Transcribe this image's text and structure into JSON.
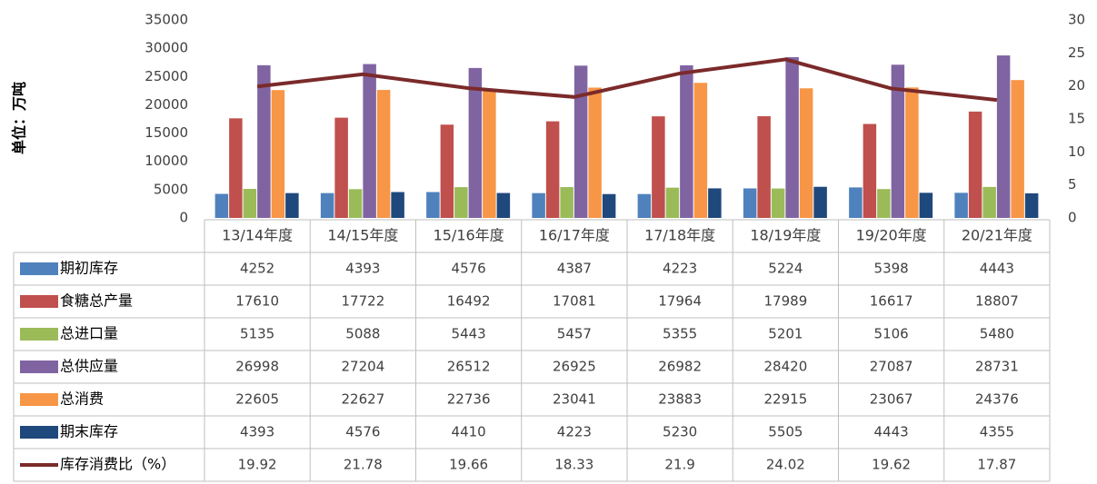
{
  "chart_data": {
    "type": "bar",
    "y_label": "单位：万吨",
    "categories": [
      "13/14年度",
      "14/15年度",
      "15/16年度",
      "16/17年度",
      "17/18年度",
      "18/19年度",
      "19/20年度",
      "20/21年度"
    ],
    "series": [
      {
        "name": "期初库存",
        "color": "#4f81bd",
        "values": [
          4252,
          4393,
          4576,
          4387,
          4223,
          5224,
          5398,
          4443
        ]
      },
      {
        "name": "食糖总产量",
        "color": "#c0504d",
        "values": [
          17610,
          17722,
          16492,
          17081,
          17964,
          17989,
          16617,
          18807
        ]
      },
      {
        "name": "总进口量",
        "color": "#9bbb59",
        "values": [
          5135,
          5088,
          5443,
          5457,
          5355,
          5201,
          5106,
          5480
        ]
      },
      {
        "name": "总供应量",
        "color": "#8064a2",
        "values": [
          26998,
          27204,
          26512,
          26925,
          26982,
          28420,
          27087,
          28731
        ]
      },
      {
        "name": "总消费",
        "color": "#f79646",
        "values": [
          22605,
          22627,
          22736,
          23041,
          23883,
          22915,
          23067,
          24376
        ]
      },
      {
        "name": "期末库存",
        "color": "#1f497d",
        "values": [
          4393,
          4576,
          4410,
          4223,
          5230,
          5505,
          4443,
          4355
        ]
      },
      {
        "name": "库存消费比（%）",
        "color": "#7b2a2a",
        "axis": "y2",
        "values": [
          19.92,
          21.78,
          19.66,
          18.33,
          21.9,
          24.02,
          19.62,
          17.87
        ]
      }
    ],
    "ylim": [
      0,
      35000
    ],
    "yticks": [
      0,
      5000,
      10000,
      15000,
      20000,
      25000,
      30000,
      35000
    ],
    "y2lim": [
      0,
      30
    ],
    "y2ticks": [
      0,
      5,
      10,
      15,
      20,
      25,
      30
    ]
  }
}
